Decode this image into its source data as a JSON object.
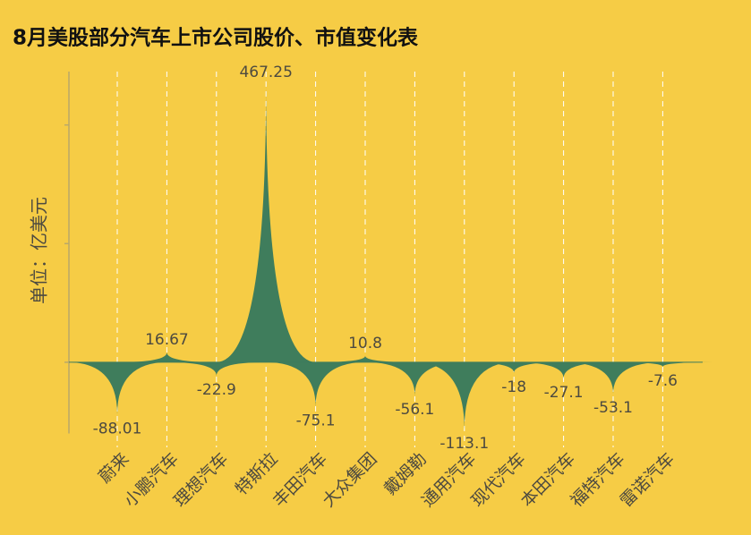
{
  "chart_data": {
    "type": "spike",
    "title": "8月美股部分汽车上市公司股价、市值变化表",
    "y_label": "单位：亿美元",
    "categories": [
      "蔚来",
      "小鹏汽车",
      "理想汽车",
      "特斯拉",
      "丰田汽车",
      "大众集团",
      "戴姆勒",
      "通用汽车",
      "现代汽车",
      "本田汽车",
      "福特汽车",
      "雷诺汽车"
    ],
    "values": [
      -88.01,
      16.67,
      -22.9,
      467.25,
      -75.1,
      10.8,
      -56.1,
      -113.1,
      -18,
      -27.1,
      -53.1,
      -7.6
    ],
    "color": "#3f7d5c",
    "ylim": [
      -120,
      490
    ],
    "yticks": [
      0,
      200,
      400
    ],
    "grid": true
  }
}
